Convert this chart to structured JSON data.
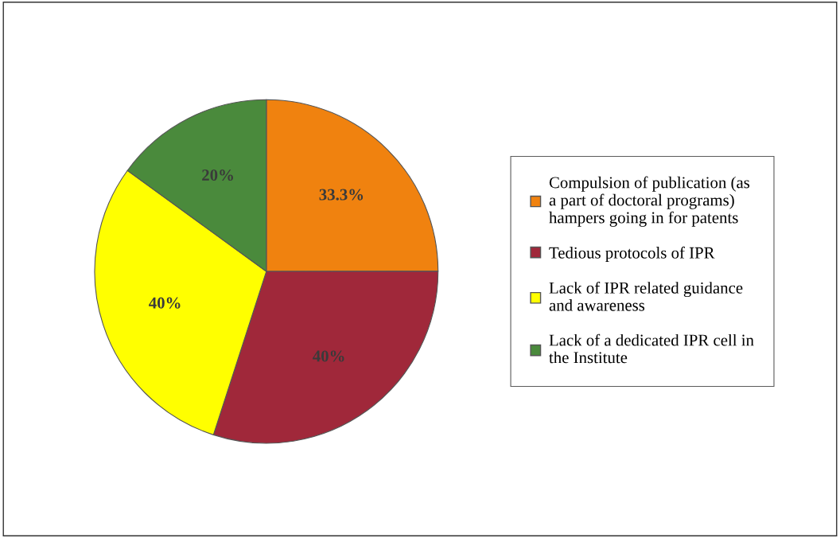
{
  "chart_data": {
    "type": "pie",
    "categories": [
      "Compulsion of publication (as\na part of doctoral programs)\nhampers going in for patents",
      "Tedious protocols of IPR",
      "Lack of IPR related guidance\nand awareness",
      "Lack of a dedicated IPR cell in\nthe Institute"
    ],
    "values": [
      33.3,
      40,
      40,
      20
    ],
    "value_labels": [
      "33.3%",
      "40%",
      "40%",
      "20%"
    ],
    "colors": [
      "#f0820f",
      "#a0283a",
      "#ffff00",
      "#4a8a3c"
    ],
    "legend": "right"
  }
}
